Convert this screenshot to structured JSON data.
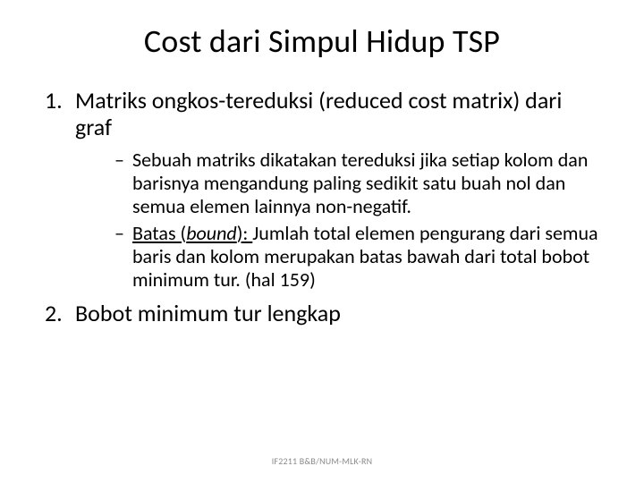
{
  "title": "Cost dari Simpul Hidup TSP",
  "items": [
    {
      "num": "1.",
      "text": "Matriks ongkos-tereduksi (reduced cost matrix) dari graf",
      "sub": [
        {
          "dash": "–",
          "text": "Sebuah matriks dikatakan tereduksi jika setiap kolom dan barisnya mengandung paling sedikit satu buah nol dan semua elemen lainnya non-negatif."
        },
        {
          "dash": "–",
          "label_pre": "Batas (",
          "label_italic": "bound",
          "label_post": "): ",
          "text": "Jumlah total elemen pengurang dari semua baris dan kolom merupakan batas bawah dari total bobot minimum tur. (hal 159)"
        }
      ]
    },
    {
      "num": "2.",
      "text": "Bobot minimum tur lengkap",
      "sub": []
    }
  ],
  "footer": "IF2211 B&B/NUM-MLK-RN",
  "colors": {
    "background": "#ffffff",
    "text": "#000000",
    "footer": "#8a8a8a"
  },
  "fontsizes": {
    "title": 36,
    "item": 26,
    "subitem": 22,
    "footer": 10
  }
}
